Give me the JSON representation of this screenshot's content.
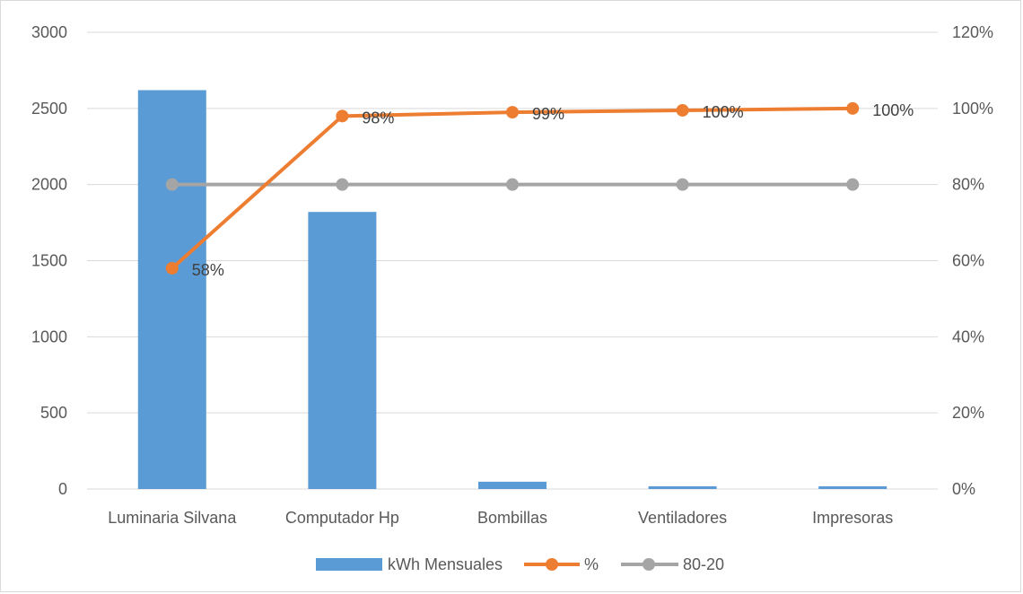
{
  "chart_data": {
    "type": "bar",
    "title": "",
    "xlabel": "",
    "ylabel": "",
    "categories": [
      "Luminaria Silvana",
      "Computador Hp",
      "Bombillas",
      "Ventiladores",
      "Impresoras"
    ],
    "series": [
      {
        "name": "kWh Mensuales",
        "type": "bar",
        "axis": "left",
        "values": [
          2620,
          1820,
          48,
          18,
          18
        ],
        "color": "#5b9bd5"
      },
      {
        "name": "%",
        "type": "line",
        "axis": "right",
        "values": [
          0.58,
          0.98,
          0.99,
          0.995,
          1.0
        ],
        "data_labels": [
          "58%",
          "98%",
          "99%",
          "100%",
          "100%"
        ],
        "color": "#ed7d31"
      },
      {
        "name": "80-20",
        "type": "line",
        "axis": "right",
        "values": [
          0.8,
          0.8,
          0.8,
          0.8,
          0.8
        ],
        "color": "#a5a5a5"
      }
    ],
    "y_left": {
      "min": 0,
      "max": 3000,
      "ticks": [
        0,
        500,
        1000,
        1500,
        2000,
        2500,
        3000
      ],
      "tick_labels": [
        "0",
        "500",
        "1000",
        "1500",
        "2000",
        "2500",
        "3000"
      ]
    },
    "y_right": {
      "min": 0,
      "max": 1.2,
      "ticks": [
        0,
        0.2,
        0.4,
        0.6,
        0.8,
        1.0,
        1.2
      ],
      "tick_labels": [
        "0%",
        "20%",
        "40%",
        "60%",
        "80%",
        "100%",
        "120%"
      ]
    },
    "grid": true,
    "legend_position": "bottom"
  }
}
